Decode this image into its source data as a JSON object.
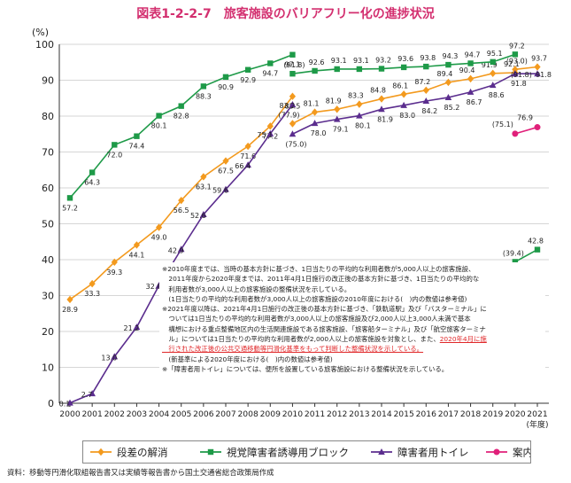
{
  "title": "図表1-2-2-7　旅客施設のバリアフリー化の進捗状況",
  "source": "資料：移動等円滑化取組報告書又は実績等報告書から国土交通省総合政策局作成",
  "notes": [
    {
      "text": "※2010年度までは、当時の基本方針に基づき、1日当たりの平均的な利用者数が5,000人以上の旅客施設、"
    },
    {
      "text": "　2011年度から2020年度までは、2011年4月1日施行の改正後の基本方針に基づき、1日当たりの平均的な"
    },
    {
      "text": "　利用者数が3,000人以上の旅客施設の整備状況を示している。"
    },
    {
      "text": "　(1日当たりの平均的な利用者数が3,000人以上の旅客施設の2010年度における(　)内の数値は参考値)"
    },
    {
      "text": "※2021年度以降は、2021年4月1日施行の改正後の基本方針に基づき、「鉄軌道駅」及び「バスターミナル」に"
    },
    {
      "text": "　ついては1日当たりの平均的な利用者数が3,000人以上の旅客施設及び2,000人以上3,000人未満で基本"
    },
    {
      "text": "　構想における重点整備地区内の生活関連施設である旅客施設、「旅客船ターミナル」及び「航空旅客ターミナ"
    },
    {
      "text": "　ル」については1日当たりの平均的な利用者数が2,000人以上の旅客施設を対象とし、また、",
      "red": "2020年4月に施"
    },
    {
      "text": "",
      "red": "　行された改正後の公共交通移動等円滑化基準をもって判断した整備状況を示している。"
    },
    {
      "text": "　(新基準による2020年度における(　)内の数値は参考値)"
    },
    {
      "text": "※「障害者用トイレ」については、便所を設置している旅客施設における整備状況を示している。"
    }
  ],
  "chart_data": {
    "type": "line",
    "ylabel": "(%)",
    "xlabel": "(年度)",
    "ylim": [
      0,
      100
    ],
    "yticks": [
      0,
      10,
      20,
      30,
      40,
      50,
      60,
      70,
      80,
      90,
      100
    ],
    "x": [
      2000,
      2001,
      2002,
      2003,
      2004,
      2005,
      2006,
      2007,
      2008,
      2009,
      2010,
      2011,
      2012,
      2013,
      2014,
      2015,
      2016,
      2017,
      2018,
      2019,
      2020,
      2021
    ],
    "legend_position": "bottom",
    "grid": true,
    "series": [
      {
        "name": "段差の解消",
        "color": "#f39a1e",
        "marker": "diamond",
        "segments": [
          {
            "points": [
              [
                2000,
                28.9
              ],
              [
                2001,
                33.3
              ],
              [
                2002,
                39.3
              ],
              [
                2003,
                44.1
              ],
              [
                2004,
                49.0
              ],
              [
                2005,
                56.5
              ],
              [
                2006,
                63.1
              ],
              [
                2007,
                67.5
              ],
              [
                2008,
                71.6
              ],
              [
                2009,
                77.2
              ],
              [
                2010,
                85.5
              ]
            ],
            "labels": [
              "28.9",
              "33.3",
              "39.3",
              "44.1",
              "49.0",
              "56.5",
              "63.1",
              "67.5",
              "71.6",
              "77.2",
              "85.5"
            ]
          },
          {
            "points": [
              [
                2010,
                77.9
              ],
              [
                2011,
                81.1
              ],
              [
                2012,
                81.9
              ],
              [
                2013,
                83.3
              ],
              [
                2014,
                84.8
              ],
              [
                2015,
                86.1
              ],
              [
                2016,
                87.2
              ],
              [
                2017,
                89.4
              ],
              [
                2018,
                90.4
              ],
              [
                2019,
                91.9
              ],
              [
                2020,
                92.1
              ]
            ],
            "labels": [
              "(77.9)",
              "81.1",
              "81.9",
              "83.3",
              "84.8",
              "86.1",
              "87.2",
              "89.4",
              "90.4",
              "91.9",
              "92.1"
            ]
          },
          {
            "points": [
              [
                2020,
                93.0
              ],
              [
                2021,
                93.7
              ]
            ],
            "labels": [
              "(93.0)",
              "93.7"
            ]
          }
        ]
      },
      {
        "name": "視覚障害者誘導用ブロック",
        "color": "#1e9a48",
        "marker": "square",
        "segments": [
          {
            "points": [
              [
                2000,
                57.2
              ],
              [
                2001,
                64.3
              ],
              [
                2002,
                72.0
              ],
              [
                2003,
                74.4
              ],
              [
                2004,
                80.1
              ],
              [
                2005,
                82.8
              ],
              [
                2006,
                88.3
              ],
              [
                2007,
                90.9
              ],
              [
                2008,
                92.9
              ],
              [
                2009,
                94.7
              ],
              [
                2010,
                97.1
              ]
            ],
            "labels": [
              "57.2",
              "64.3",
              "72.0",
              "74.4",
              "80.1",
              "82.8",
              "88.3",
              "90.9",
              "92.9",
              "94.7",
              "97.1"
            ]
          },
          {
            "points": [
              [
                2010,
                91.8
              ],
              [
                2011,
                92.6
              ],
              [
                2012,
                93.1
              ],
              [
                2013,
                93.1
              ],
              [
                2014,
                93.2
              ],
              [
                2015,
                93.6
              ],
              [
                2016,
                93.8
              ],
              [
                2017,
                94.3
              ],
              [
                2018,
                94.7
              ],
              [
                2019,
                95.1
              ],
              [
                2020,
                97.2
              ]
            ],
            "labels": [
              "(91.8)",
              "92.6",
              "93.1",
              "93.1",
              "93.2",
              "93.6",
              "93.8",
              "94.3",
              "94.7",
              "95.1",
              "97.2"
            ]
          },
          {
            "points": [
              [
                2020,
                39.4
              ],
              [
                2021,
                42.8
              ]
            ],
            "labels": [
              "(39.4)",
              "42.8"
            ]
          }
        ]
      },
      {
        "name": "障害者用トイレ",
        "color": "#5b2d8e",
        "marker": "triangle",
        "segments": [
          {
            "points": [
              [
                2000,
                0.1
              ],
              [
                2001,
                2.7
              ],
              [
                2002,
                13.0
              ],
              [
                2003,
                21.2
              ],
              [
                2004,
                32.8
              ],
              [
                2005,
                42.9
              ],
              [
                2006,
                52.6
              ],
              [
                2007,
                59.6
              ],
              [
                2008,
                66.4
              ],
              [
                2009,
                75.1
              ],
              [
                2010,
                83.2
              ]
            ],
            "labels": [
              "0.1",
              "2.7",
              "13.0",
              "21.2",
              "32.8",
              "42.9",
              "52.6",
              "59.6",
              "66.4",
              "75.1",
              "83.2"
            ]
          },
          {
            "points": [
              [
                2010,
                75.0
              ],
              [
                2011,
                78.0
              ],
              [
                2012,
                79.1
              ],
              [
                2013,
                80.1
              ],
              [
                2014,
                81.9
              ],
              [
                2015,
                83.0
              ],
              [
                2016,
                84.2
              ],
              [
                2017,
                85.2
              ],
              [
                2018,
                86.7
              ],
              [
                2019,
                88.6
              ],
              [
                2020,
                91.8
              ]
            ],
            "labels": [
              "(75.0)",
              "78.0",
              "79.1",
              "80.1",
              "81.9",
              "83.0",
              "84.2",
              "85.2",
              "86.7",
              "88.6",
              "91.8"
            ]
          },
          {
            "points": [
              [
                2020,
                91.8
              ],
              [
                2021,
                91.8
              ]
            ],
            "labels": [
              "(91.8)",
              "91.8"
            ]
          }
        ]
      },
      {
        "name": "案内設備",
        "color": "#e0207a",
        "marker": "circle",
        "segments": [
          {
            "points": [
              [
                2020,
                75.1
              ],
              [
                2021,
                76.9
              ]
            ],
            "labels": [
              "(75.1)",
              "76.9"
            ]
          }
        ]
      }
    ]
  }
}
